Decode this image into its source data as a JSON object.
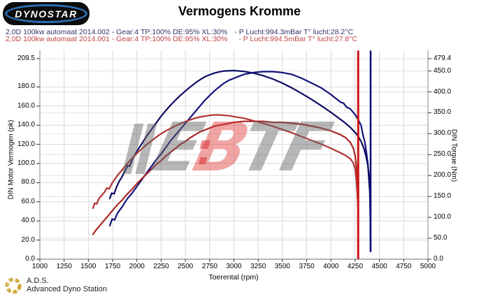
{
  "header": {
    "logo_text": "DYNOSTAR",
    "logo_fineprint": "....",
    "title": "Vermogens Kromme",
    "runs": [
      {
        "label": "2,0D 100kw automaat 2014.002 - Gear:4 TP:100% DE:95% XL:30%",
        "ambient": "- P Lucht:994.3mBar T° lucht:28.2°C",
        "color": "#32326b"
      },
      {
        "label": "2,0D 100kw automaat 2014.001 - Gear:4 TP:100% DE:95% XL:30%",
        "ambient": "- P Lucht:994.5mBar T° lucht:27.8°C",
        "color": "#c24444"
      }
    ]
  },
  "chart_data": {
    "type": "line",
    "title": "Vermogens Kromme",
    "xlabel": "Toerental (rpm)",
    "ylabel_left": "DIN Motor Vermogen (pk)",
    "ylabel_right": "DIN Torque (Nm)",
    "x_range": [
      1000,
      5000
    ],
    "y_left_range": [
      0,
      209.5
    ],
    "y_right_range": [
      0,
      479.4
    ],
    "x_ticks": [
      1000,
      1250,
      1500,
      1750,
      2000,
      2250,
      2500,
      2750,
      3000,
      3250,
      3500,
      3750,
      4000,
      4250,
      4500,
      4750,
      5000
    ],
    "y_left_ticks": [
      209.5,
      180.0,
      160.0,
      140.0,
      120.0,
      100.0,
      80.0,
      60.0,
      40.0,
      20.0,
      0.0
    ],
    "y_right_ticks": [
      479.4,
      450.0,
      400.0,
      350.0,
      300.0,
      250.0,
      200.0,
      150.0,
      100.0,
      50.0,
      0.0
    ],
    "grid": true,
    "legend_position": "none",
    "series": [
      {
        "name": "power-2014.002",
        "axis": "left",
        "color": "#13137c",
        "width": 2.2,
        "points": [
          [
            1721,
            35
          ],
          [
            1745,
            42
          ],
          [
            1770,
            41
          ],
          [
            1800,
            48
          ],
          [
            1850,
            55
          ],
          [
            1900,
            63
          ],
          [
            1950,
            69
          ],
          [
            2000,
            76
          ],
          [
            2050,
            83
          ],
          [
            2100,
            90
          ],
          [
            2150,
            97
          ],
          [
            2200,
            104
          ],
          [
            2250,
            110
          ],
          [
            2300,
            117
          ],
          [
            2350,
            124
          ],
          [
            2400,
            130
          ],
          [
            2450,
            136
          ],
          [
            2500,
            142
          ],
          [
            2550,
            148
          ],
          [
            2600,
            154
          ],
          [
            2650,
            160
          ],
          [
            2700,
            166
          ],
          [
            2750,
            171
          ],
          [
            2800,
            176
          ],
          [
            2850,
            180
          ],
          [
            2900,
            184
          ],
          [
            2950,
            187
          ],
          [
            3000,
            189
          ],
          [
            3050,
            191
          ],
          [
            3100,
            193
          ],
          [
            3200,
            195
          ],
          [
            3300,
            196
          ],
          [
            3400,
            196
          ],
          [
            3500,
            195
          ],
          [
            3600,
            193
          ],
          [
            3700,
            189
          ],
          [
            3800,
            184
          ],
          [
            3900,
            179
          ],
          [
            4000,
            172
          ],
          [
            4050,
            168
          ],
          [
            4100,
            164
          ],
          [
            4130,
            163
          ],
          [
            4160,
            159
          ],
          [
            4200,
            157
          ],
          [
            4250,
            151
          ],
          [
            4280,
            146
          ],
          [
            4310,
            140
          ],
          [
            4330,
            130
          ],
          [
            4350,
            122
          ],
          [
            4365,
            112
          ],
          [
            4380,
            100
          ],
          [
            4390,
            85
          ],
          [
            4400,
            70
          ],
          [
            4405,
            50
          ],
          [
            4408,
            20
          ],
          [
            4409,
            8
          ]
        ]
      },
      {
        "name": "torque-2014.002",
        "axis": "right",
        "color": "#0c0c63",
        "width": 2.2,
        "points": [
          [
            1721,
            145
          ],
          [
            1740,
            158
          ],
          [
            1765,
            156
          ],
          [
            1790,
            172
          ],
          [
            1815,
            185
          ],
          [
            1845,
            196
          ],
          [
            1875,
            210
          ],
          [
            1905,
            224
          ],
          [
            1925,
            222
          ],
          [
            1955,
            240
          ],
          [
            2000,
            258
          ],
          [
            2050,
            276
          ],
          [
            2100,
            294
          ],
          [
            2150,
            310
          ],
          [
            2200,
            326
          ],
          [
            2250,
            342
          ],
          [
            2300,
            356
          ],
          [
            2350,
            369
          ],
          [
            2400,
            381
          ],
          [
            2450,
            392
          ],
          [
            2500,
            402
          ],
          [
            2550,
            412
          ],
          [
            2600,
            421
          ],
          [
            2650,
            429
          ],
          [
            2700,
            436
          ],
          [
            2750,
            441
          ],
          [
            2800,
            445
          ],
          [
            2850,
            448
          ],
          [
            2900,
            450
          ],
          [
            3000,
            451
          ],
          [
            3100,
            449
          ],
          [
            3200,
            445
          ],
          [
            3300,
            439
          ],
          [
            3400,
            431
          ],
          [
            3500,
            421
          ],
          [
            3600,
            409
          ],
          [
            3700,
            396
          ],
          [
            3800,
            382
          ],
          [
            3900,
            367
          ],
          [
            4000,
            351
          ],
          [
            4100,
            334
          ],
          [
            4150,
            325
          ],
          [
            4200,
            315
          ],
          [
            4250,
            303
          ],
          [
            4280,
            294
          ],
          [
            4310,
            282
          ],
          [
            4340,
            265
          ],
          [
            4360,
            248
          ],
          [
            4380,
            225
          ],
          [
            4395,
            195
          ],
          [
            4403,
            160
          ],
          [
            4407,
            100
          ],
          [
            4409,
            25
          ]
        ]
      },
      {
        "name": "power-2014.001",
        "axis": "left",
        "color": "#aa2626",
        "width": 2.2,
        "points": [
          [
            1548,
            26
          ],
          [
            1575,
            30
          ],
          [
            1600,
            33
          ],
          [
            1650,
            39
          ],
          [
            1700,
            45
          ],
          [
            1750,
            51
          ],
          [
            1800,
            57
          ],
          [
            1850,
            62
          ],
          [
            1900,
            68
          ],
          [
            1950,
            73
          ],
          [
            2000,
            79
          ],
          [
            2050,
            84
          ],
          [
            2100,
            89
          ],
          [
            2150,
            94
          ],
          [
            2200,
            99
          ],
          [
            2250,
            103
          ],
          [
            2300,
            108
          ],
          [
            2350,
            112
          ],
          [
            2400,
            116
          ],
          [
            2450,
            120
          ],
          [
            2500,
            123
          ],
          [
            2550,
            127
          ],
          [
            2600,
            130
          ],
          [
            2650,
            133
          ],
          [
            2700,
            135
          ],
          [
            2750,
            137
          ],
          [
            2800,
            139
          ],
          [
            2850,
            140
          ],
          [
            2900,
            141
          ],
          [
            2950,
            142
          ],
          [
            3000,
            143
          ],
          [
            3100,
            144
          ],
          [
            3200,
            144
          ],
          [
            3300,
            144
          ],
          [
            3400,
            143
          ],
          [
            3500,
            143
          ],
          [
            3600,
            142
          ],
          [
            3700,
            141
          ],
          [
            3800,
            139
          ],
          [
            3900,
            137
          ],
          [
            4000,
            134
          ],
          [
            4100,
            130
          ],
          [
            4150,
            127
          ],
          [
            4200,
            122
          ],
          [
            4230,
            116
          ],
          [
            4250,
            108
          ],
          [
            4262,
            96
          ],
          [
            4270,
            82
          ],
          [
            4276,
            65
          ],
          [
            4279,
            55
          ]
        ]
      },
      {
        "name": "torque-2014.001",
        "axis": "right",
        "color": "#b13434",
        "width": 2.2,
        "points": [
          [
            1548,
            122
          ],
          [
            1565,
            134
          ],
          [
            1585,
            132
          ],
          [
            1610,
            145
          ],
          [
            1635,
            152
          ],
          [
            1665,
            160
          ],
          [
            1690,
            170
          ],
          [
            1715,
            168
          ],
          [
            1745,
            182
          ],
          [
            1775,
            192
          ],
          [
            1805,
            202
          ],
          [
            1835,
            210
          ],
          [
            1870,
            220
          ],
          [
            1910,
            231
          ],
          [
            1950,
            241
          ],
          [
            2000,
            253
          ],
          [
            2050,
            264
          ],
          [
            2100,
            274
          ],
          [
            2150,
            283
          ],
          [
            2200,
            292
          ],
          [
            2250,
            300
          ],
          [
            2300,
            307
          ],
          [
            2350,
            313
          ],
          [
            2400,
            319
          ],
          [
            2450,
            324
          ],
          [
            2500,
            329
          ],
          [
            2550,
            333
          ],
          [
            2600,
            337
          ],
          [
            2650,
            340
          ],
          [
            2700,
            342
          ],
          [
            2750,
            344
          ],
          [
            2800,
            345
          ],
          [
            2850,
            345
          ],
          [
            2900,
            344
          ],
          [
            2950,
            343
          ],
          [
            3000,
            341
          ],
          [
            3100,
            337
          ],
          [
            3200,
            331
          ],
          [
            3300,
            325
          ],
          [
            3400,
            318
          ],
          [
            3500,
            310
          ],
          [
            3600,
            302
          ],
          [
            3700,
            293
          ],
          [
            3800,
            284
          ],
          [
            3900,
            275
          ],
          [
            4000,
            265
          ],
          [
            4100,
            254
          ],
          [
            4150,
            248
          ],
          [
            4200,
            240
          ],
          [
            4230,
            230
          ],
          [
            4250,
            215
          ],
          [
            4262,
            190
          ],
          [
            4270,
            165
          ],
          [
            4276,
            140
          ],
          [
            4279,
            120
          ]
        ]
      }
    ],
    "end_lines": [
      {
        "rpm": 4281,
        "from_left_units": 218,
        "to_left_units": 0,
        "color": "#cc1414",
        "width": 3
      },
      {
        "rpm": 4409,
        "from_left_units": 218,
        "to_left_units": 8,
        "color": "#0d0d78",
        "width": 2.5
      }
    ]
  },
  "watermark": {
    "letters": [
      {
        "ch": "E",
        "color": "rgba(105,105,105,0.48)"
      },
      {
        "ch": "B",
        "color": "rgba(225,55,55,0.45)"
      },
      {
        "ch": "T",
        "color": "rgba(105,105,105,0.48)"
      },
      {
        "ch": "F",
        "color": "rgba(105,105,105,0.48)"
      }
    ]
  },
  "footer": {
    "ads_abbr": "A.D.S.",
    "ads_name": "Advanced Dyno Station"
  }
}
